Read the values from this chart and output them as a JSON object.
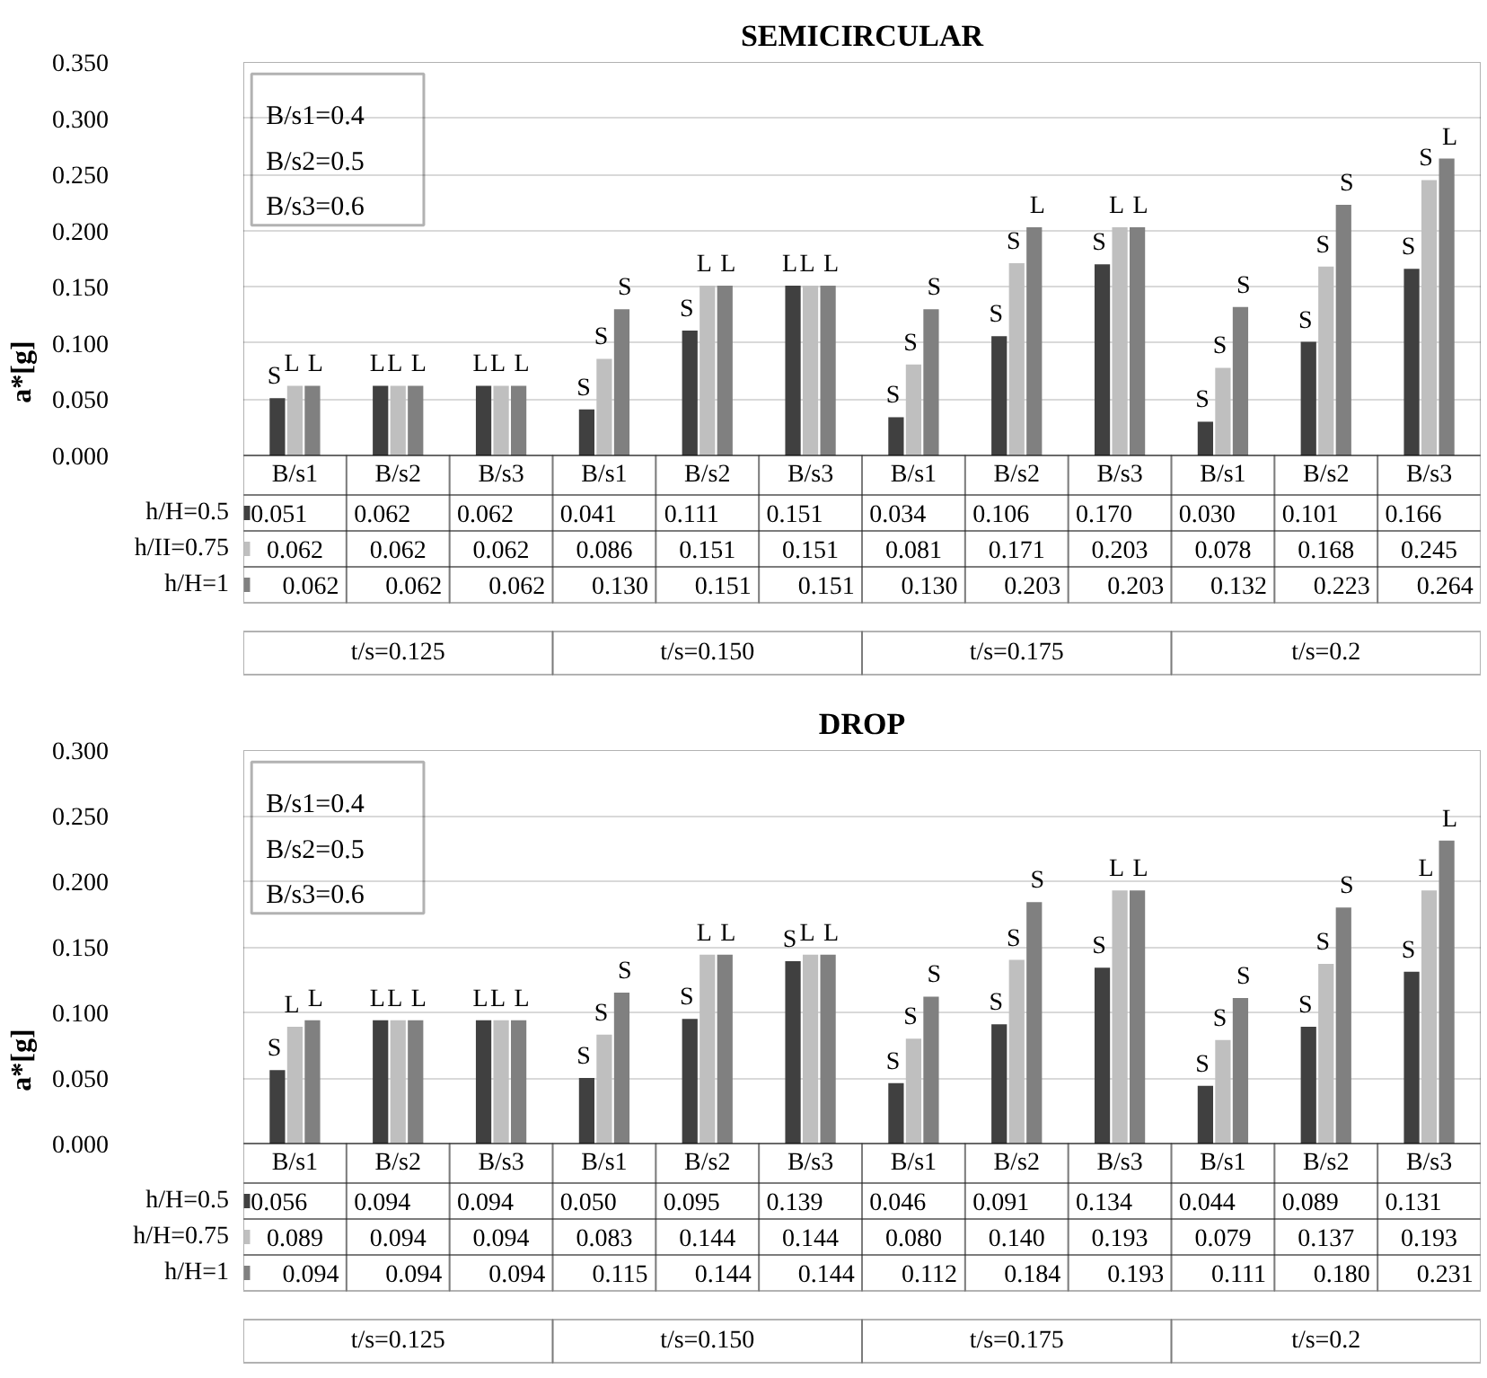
{
  "chart_data": [
    {
      "type": "bar",
      "title": "SEMICIRCULAR",
      "ylabel": "a*[g]",
      "categories": [
        "B/s1",
        "B/s2",
        "B/s3",
        "B/s1",
        "B/s2",
        "B/s3",
        "B/s1",
        "B/s2",
        "B/s3",
        "B/s1",
        "B/s2",
        "B/s3"
      ],
      "series": [
        {
          "name": "h/H=0.5",
          "color": "#404040",
          "values": [
            0.051,
            0.062,
            0.062,
            0.041,
            0.111,
            0.151,
            0.034,
            0.106,
            0.17,
            0.03,
            0.101,
            0.166
          ],
          "value_labels": [
            "0.051",
            "0.062",
            "0.062",
            "0.041",
            "0.111",
            "0.151",
            "0.034",
            "0.106",
            "0.170",
            "0.030",
            "0.101",
            "0.166"
          ]
        },
        {
          "name": "h/II=0.75",
          "color": "#bfbfbf",
          "values": [
            0.062,
            0.062,
            0.062,
            0.086,
            0.151,
            0.151,
            0.081,
            0.171,
            0.203,
            0.078,
            0.168,
            0.245
          ],
          "value_labels": [
            "0.062",
            "0.062",
            "0.062",
            "0.086",
            "0.151",
            "0.151",
            "0.081",
            "0.171",
            "0.203",
            "0.078",
            "0.168",
            "0.245"
          ]
        },
        {
          "name": "h/H=1",
          "color": "#808080",
          "values": [
            0.062,
            0.062,
            0.062,
            0.13,
            0.151,
            0.151,
            0.13,
            0.203,
            0.203,
            0.132,
            0.223,
            0.264
          ],
          "value_labels": [
            "0.062",
            "0.062",
            "0.062",
            "0.130",
            "0.151",
            "0.151",
            "0.130",
            "0.203",
            "0.203",
            "0.132",
            "0.223",
            "0.264"
          ]
        }
      ],
      "ylim": [
        0,
        0.35
      ],
      "yticks": [
        {
          "value": 0,
          "label": "0.000"
        },
        {
          "value": 0.05,
          "label": "0.050"
        },
        {
          "value": 0.1,
          "label": "0.100"
        },
        {
          "value": 0.15,
          "label": "0.150"
        },
        {
          "value": 0.2,
          "label": "0.200"
        },
        {
          "value": 0.25,
          "label": "0.250"
        },
        {
          "value": 0.3,
          "label": "0.300"
        },
        {
          "value": 0.35,
          "label": "0.350"
        }
      ],
      "grid": "y",
      "legend": "bottom",
      "annotations": [
        "B/s1=0.4",
        "B/s2=0.5",
        "B/s3=0.6",
        "t/s=0.125",
        "t/s=0.150",
        "t/s=0.175",
        "t/s=0.2",
        "S",
        "L",
        "L",
        "L",
        "L",
        "L",
        "L",
        "L",
        "L",
        "S",
        "S",
        "S",
        "S",
        "L",
        "L",
        "L",
        "L",
        "L",
        "S",
        "S",
        "S",
        "S",
        "S",
        "L",
        "S",
        "L",
        "L",
        "S",
        "S",
        "S",
        "S",
        "S",
        "S",
        "S",
        "S",
        "L"
      ]
    },
    {
      "type": "bar",
      "title": "DROP",
      "ylabel": "a*[g]",
      "categories": [
        "B/s1",
        "B/s2",
        "B/s3",
        "B/s1",
        "B/s2",
        "B/s3",
        "B/s1",
        "B/s2",
        "B/s3",
        "B/s1",
        "B/s2",
        "B/s3"
      ],
      "series": [
        {
          "name": "h/H=0.5",
          "color": "#404040",
          "values": [
            0.056,
            0.094,
            0.094,
            0.05,
            0.095,
            0.139,
            0.046,
            0.091,
            0.134,
            0.044,
            0.089,
            0.131
          ],
          "value_labels": [
            "0.056",
            "0.094",
            "0.094",
            "0.050",
            "0.095",
            "0.139",
            "0.046",
            "0.091",
            "0.134",
            "0.044",
            "0.089",
            "0.131"
          ]
        },
        {
          "name": "h/H=0.75",
          "color": "#bfbfbf",
          "values": [
            0.089,
            0.094,
            0.094,
            0.083,
            0.144,
            0.144,
            0.08,
            0.14,
            0.193,
            0.079,
            0.137,
            0.193
          ],
          "value_labels": [
            "0.089",
            "0.094",
            "0.094",
            "0.083",
            "0.144",
            "0.144",
            "0.080",
            "0.140",
            "0.193",
            "0.079",
            "0.137",
            "0.193"
          ]
        },
        {
          "name": "h/H=1",
          "color": "#808080",
          "values": [
            0.094,
            0.094,
            0.094,
            0.115,
            0.144,
            0.144,
            0.112,
            0.184,
            0.193,
            0.111,
            0.18,
            0.231
          ],
          "value_labels": [
            "0.094",
            "0.094",
            "0.094",
            "0.115",
            "0.144",
            "0.144",
            "0.112",
            "0.184",
            "0.193",
            "0.111",
            "0.180",
            "0.231"
          ]
        }
      ],
      "ylim": [
        0,
        0.3
      ],
      "yticks": [
        {
          "value": 0,
          "label": "0.000"
        },
        {
          "value": 0.05,
          "label": "0.050"
        },
        {
          "value": 0.1,
          "label": "0.100"
        },
        {
          "value": 0.15,
          "label": "0.150"
        },
        {
          "value": 0.2,
          "label": "0.200"
        },
        {
          "value": 0.25,
          "label": "0.250"
        },
        {
          "value": 0.3,
          "label": "0.300"
        }
      ],
      "grid": "y",
      "legend": "bottom",
      "annotations": [
        "B/s1=0.4",
        "B/s2=0.5",
        "B/s3=0.6",
        "t/s=0.125",
        "t/s=0.150",
        "t/s=0.175",
        "t/s=0.2",
        "S",
        "L",
        "L",
        "L",
        "L",
        "L",
        "L",
        "L",
        "L",
        "S",
        "S",
        "S",
        "S",
        "L",
        "L",
        "S",
        "L",
        "L",
        "S",
        "S",
        "S",
        "S",
        "S",
        "S",
        "S",
        "L",
        "L",
        "S",
        "S",
        "S",
        "S",
        "S",
        "S",
        "S",
        "L",
        "L"
      ]
    }
  ]
}
